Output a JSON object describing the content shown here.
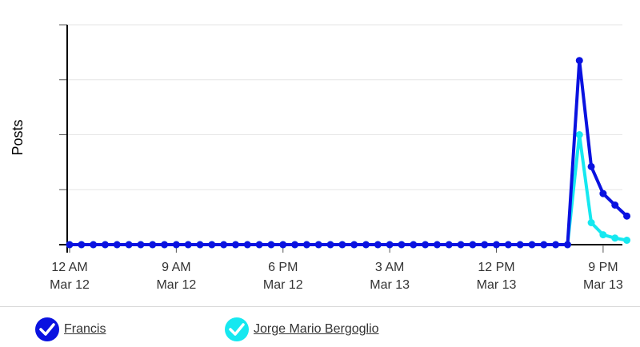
{
  "chart_data": {
    "type": "line",
    "ylabel": "Posts",
    "xlabel": "",
    "grid": true,
    "legend_position": "bottom",
    "x_ticks": [
      {
        "time": "Mar 12 12 AM",
        "line1": "12 AM",
        "line2": "Mar 12"
      },
      {
        "time": "Mar 12 9 AM",
        "line1": "9 AM",
        "line2": "Mar 12"
      },
      {
        "time": "Mar 12 6 PM",
        "line1": "6 PM",
        "line2": "Mar 12"
      },
      {
        "time": "Mar 13 3 AM",
        "line1": "3 AM",
        "line2": "Mar 13"
      },
      {
        "time": "Mar 13 12 PM",
        "line1": "12 PM",
        "line2": "Mar 13"
      },
      {
        "time": "Mar 13 9 PM",
        "line1": "9 PM",
        "line2": "Mar 13"
      }
    ],
    "x_unit": "hour",
    "x_range": [
      "Mar 12 12 AM",
      "Mar 13 11 PM"
    ],
    "ylim": [
      0,
      4
    ],
    "series": [
      {
        "name": "Francis",
        "color": "#0a12e0",
        "hours_from_start": [
          0,
          1,
          2,
          3,
          4,
          5,
          6,
          7,
          8,
          9,
          10,
          11,
          12,
          13,
          14,
          15,
          16,
          17,
          18,
          19,
          20,
          21,
          22,
          23,
          24,
          25,
          26,
          27,
          28,
          29,
          30,
          31,
          32,
          33,
          34,
          35,
          36,
          37,
          38,
          39,
          40,
          41,
          42,
          43,
          44,
          45,
          46,
          47
        ],
        "values": [
          0,
          0,
          0,
          0,
          0,
          0,
          0,
          0,
          0,
          0,
          0,
          0,
          0,
          0,
          0,
          0,
          0,
          0,
          0,
          0,
          0,
          0,
          0,
          0,
          0,
          0,
          0,
          0,
          0,
          0,
          0,
          0,
          0,
          0,
          0,
          0,
          0,
          0,
          0,
          0,
          0,
          0,
          0,
          3.35,
          1.42,
          0.93,
          0.72,
          0.52
        ]
      },
      {
        "name": "Jorge Mario Bergoglio",
        "color": "#16e8f0",
        "hours_from_start": [
          0,
          1,
          2,
          3,
          4,
          5,
          6,
          7,
          8,
          9,
          10,
          11,
          12,
          13,
          14,
          15,
          16,
          17,
          18,
          19,
          20,
          21,
          22,
          23,
          24,
          25,
          26,
          27,
          28,
          29,
          30,
          31,
          32,
          33,
          34,
          35,
          36,
          37,
          38,
          39,
          40,
          41,
          42,
          43,
          44,
          45,
          46,
          47
        ],
        "values": [
          0,
          0,
          0,
          0,
          0,
          0,
          0,
          0,
          0,
          0,
          0,
          0,
          0,
          0,
          0,
          0,
          0,
          0,
          0,
          0,
          0,
          0,
          0,
          0,
          0,
          0,
          0,
          0,
          0,
          0,
          0,
          0,
          0,
          0,
          0,
          0,
          0,
          0,
          0,
          0,
          0,
          0,
          0,
          2.0,
          0.4,
          0.18,
          0.12,
          0.08
        ]
      }
    ]
  },
  "legend": {
    "items": [
      {
        "label": "Francis",
        "color": "#0a12e0"
      },
      {
        "label": "Jorge Mario Bergoglio",
        "color": "#16e8f0"
      }
    ]
  }
}
